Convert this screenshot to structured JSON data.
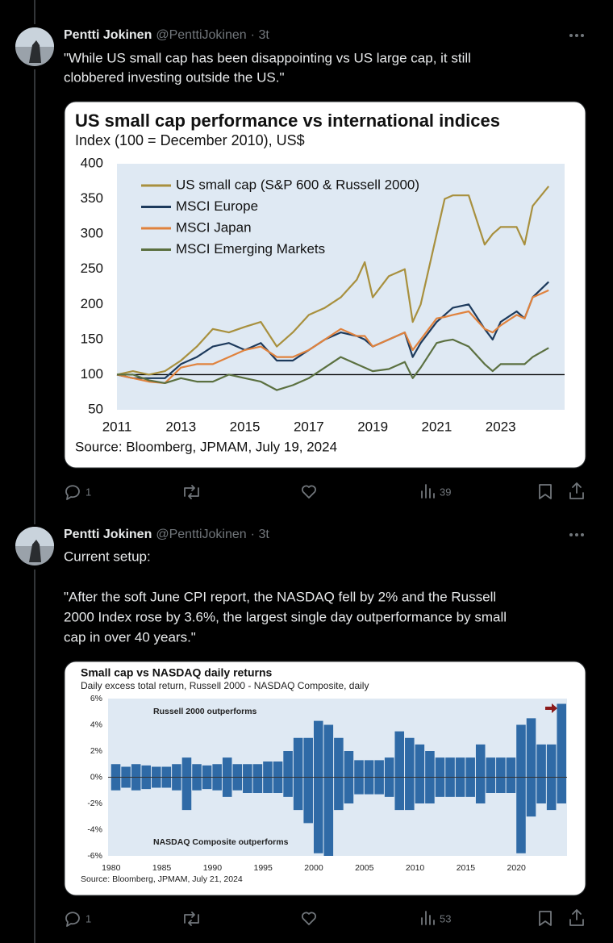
{
  "tweets": [
    {
      "author": "Pentti Jokinen",
      "handle": "@PenttiJokinen",
      "time": "· 3t",
      "paragraphs": [
        [
          "\"While US small cap has been disappointing vs US large cap, it still",
          "clobbered investing outside the US.\""
        ]
      ],
      "replies": 1,
      "views": 39
    },
    {
      "author": "Pentti Jokinen",
      "handle": "@PenttiJokinen",
      "time": "· 3t",
      "paragraphs": [
        [
          "Current setup:"
        ],
        [
          "\"After the soft June CPI report, the NASDAQ fell by 2% and the Russell",
          "2000 Index rose by 3.6%, the largest single day outperformance by small",
          "cap in over 40 years.\""
        ]
      ],
      "replies": 1,
      "views": 53
    }
  ],
  "chart_data": [
    {
      "type": "line",
      "title": "US small cap performance vs international indices",
      "subtitle": "Index (100 = December 2010), US$",
      "source": "Source: Bloomberg, JPMAM, July 19, 2024",
      "x": [
        2011,
        2011.5,
        2012,
        2012.5,
        2013,
        2013.5,
        2014,
        2014.5,
        2015,
        2015.5,
        2016,
        2016.5,
        2017,
        2017.5,
        2018,
        2018.5,
        2018.75,
        2019,
        2019.5,
        2020,
        2020.25,
        2020.5,
        2021,
        2021.25,
        2021.5,
        2022,
        2022.5,
        2022.75,
        2023,
        2023.5,
        2023.75,
        2024,
        2024.5
      ],
      "series": [
        {
          "name": "US small cap (S&P 600 & Russell 2000)",
          "color": "#a8903e",
          "values": [
            100,
            105,
            100,
            105,
            120,
            140,
            165,
            160,
            168,
            175,
            140,
            160,
            185,
            195,
            210,
            235,
            260,
            210,
            240,
            250,
            175,
            200,
            300,
            350,
            355,
            355,
            285,
            300,
            310,
            310,
            285,
            340,
            368
          ]
        },
        {
          "name": "MSCI Europe",
          "color": "#1d3a5c",
          "values": [
            100,
            95,
            95,
            95,
            115,
            125,
            140,
            145,
            135,
            145,
            120,
            120,
            135,
            150,
            160,
            155,
            150,
            140,
            150,
            160,
            125,
            145,
            175,
            185,
            195,
            200,
            165,
            150,
            175,
            190,
            180,
            210,
            232
          ]
        },
        {
          "name": "MSCI Japan",
          "color": "#e0823d",
          "values": [
            100,
            95,
            90,
            88,
            110,
            115,
            115,
            125,
            135,
            140,
            125,
            125,
            135,
            150,
            165,
            155,
            155,
            140,
            150,
            160,
            135,
            150,
            180,
            182,
            185,
            190,
            165,
            160,
            170,
            185,
            180,
            210,
            220
          ]
        },
        {
          "name": "MSCI Emerging Markets",
          "color": "#5b7040",
          "values": [
            100,
            100,
            92,
            88,
            95,
            90,
            90,
            100,
            95,
            90,
            78,
            85,
            95,
            110,
            125,
            115,
            110,
            105,
            108,
            118,
            95,
            110,
            145,
            148,
            150,
            140,
            115,
            105,
            115,
            115,
            115,
            125,
            138
          ]
        }
      ],
      "xlim": [
        2011,
        2025
      ],
      "xticks": [
        2011,
        2013,
        2015,
        2017,
        2019,
        2021,
        2023
      ],
      "ylim": [
        50,
        400
      ],
      "yticks": [
        50,
        100,
        150,
        200,
        250,
        300,
        350,
        400
      ],
      "reference_line": 100,
      "legend": "upper left"
    },
    {
      "type": "bar",
      "title": "Small cap vs NASDAQ daily returns",
      "subtitle": "Daily excess total return, Russell 2000 - NASDAQ Composite, daily",
      "source": "Source: Bloomberg, JPMAM, July 21, 2024",
      "annotations": [
        "Russell 2000 outperforms",
        "NASDAQ Composite outperforms"
      ],
      "x": [
        1980,
        1981,
        1982,
        1983,
        1984,
        1985,
        1986,
        1987,
        1988,
        1989,
        1990,
        1991,
        1992,
        1993,
        1994,
        1995,
        1996,
        1997,
        1998,
        1999,
        2000,
        2001,
        2002,
        2003,
        2004,
        2005,
        2006,
        2007,
        2008,
        2009,
        2010,
        2011,
        2012,
        2013,
        2014,
        2015,
        2016,
        2017,
        2018,
        2019,
        2020,
        2021,
        2022,
        2023,
        2024
      ],
      "series": [
        {
          "color": "#2f6aa6",
          "values": [
            1,
            0.8,
            1,
            0.9,
            0.8,
            0.8,
            1,
            1.5,
            1,
            0.9,
            1,
            1.5,
            1,
            1,
            1,
            1.2,
            1.2,
            2,
            3,
            3,
            4.3,
            4,
            3,
            2,
            1.3,
            1.3,
            1.3,
            1.5,
            3.5,
            3,
            2.5,
            2,
            1.5,
            1.5,
            1.5,
            1.5,
            2.5,
            1.5,
            1.5,
            1.5,
            4,
            4.5,
            2.5,
            2.5,
            5.6
          ]
        },
        {
          "color": "#2f6aa6",
          "values": [
            -1,
            -0.8,
            -1,
            -0.9,
            -0.8,
            -0.8,
            -1,
            -2.5,
            -1,
            -0.9,
            -1,
            -1.5,
            -1,
            -1.2,
            -1.2,
            -1.2,
            -1.2,
            -1.5,
            -2.5,
            -3.5,
            -5.8,
            -6,
            -2.5,
            -2,
            -1.3,
            -1.3,
            -1.3,
            -1.5,
            -2.5,
            -2.5,
            -2,
            -2,
            -1.5,
            -1.5,
            -1.5,
            -1.5,
            -2,
            -1.2,
            -1.2,
            -1.2,
            -5.8,
            -3,
            -2,
            -2.5,
            -2
          ]
        }
      ],
      "xlim": [
        1979.7,
        2025
      ],
      "xticks": [
        1980,
        1985,
        1990,
        1995,
        2000,
        2005,
        2010,
        2015,
        2020
      ],
      "ylim": [
        -6,
        6
      ],
      "yticks": [
        {
          "value": -6,
          "label": "-6%"
        },
        {
          "value": -4,
          "label": "-4%"
        },
        {
          "value": -2,
          "label": "-2%"
        },
        {
          "value": 0,
          "label": "0%"
        },
        {
          "value": 2,
          "label": "2%"
        },
        {
          "value": 4,
          "label": "4%"
        },
        {
          "value": 6,
          "label": "6%"
        }
      ]
    }
  ]
}
